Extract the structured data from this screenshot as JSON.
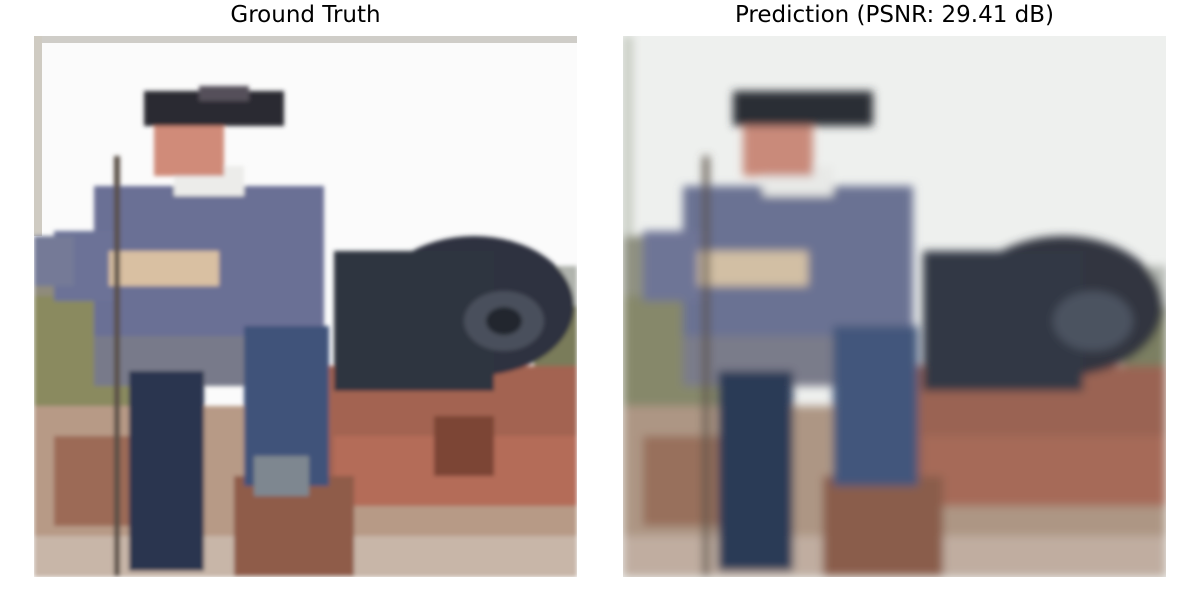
{
  "panels": [
    {
      "title": "Ground Truth",
      "subject": "pixelated photo of a man in a blue colonial coat and tricorn hat sitting on a black cannon with a reddish-brown wooden carriage",
      "colors": {
        "sky": "#fbfbfb",
        "coat": "#6a7095",
        "cannon": "#2e3340",
        "carriage": "#a36451",
        "hat": "#2b2c33",
        "face": "#d08b79"
      }
    },
    {
      "title": "Prediction (PSNR: 29.41 dB)",
      "subject": "blurrier reconstruction of the same photo",
      "colors": {
        "sky": "#eef0ee",
        "coat": "#6b7293",
        "cannon": "#303540",
        "carriage": "#9a6352",
        "hat": "#2c2d35",
        "face": "#c98a7a"
      }
    }
  ]
}
